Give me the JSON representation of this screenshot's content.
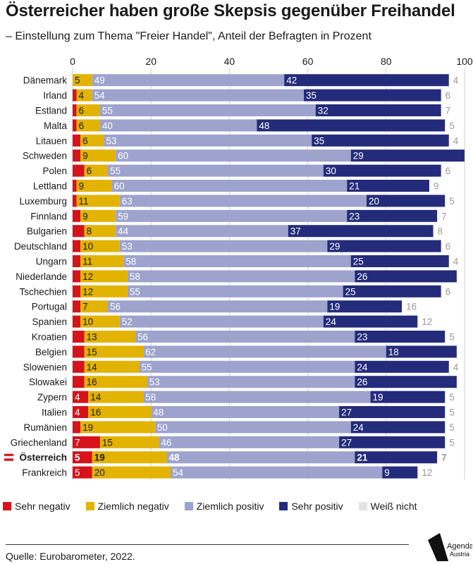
{
  "title": "Österreicher haben große Skepsis gegenüber Freihandel",
  "subtitle": "– Einstellung zum Thema \"Freier Handel\", Anteil der Befragten in Prozent",
  "source": "Quelle: Eurobarometer, 2022.",
  "logo": {
    "line1": "Agenda",
    "line2": "Austria"
  },
  "colors": {
    "sehr_negativ": "#d6121a",
    "ziemlich_negativ": "#e2b300",
    "ziemlich_positiv": "#9da3cc",
    "sehr_positiv": "#232b7a",
    "weiss_nicht": "#e3e3e3"
  },
  "highlight_flag": "austria-flag-icon",
  "chart_data": {
    "type": "bar",
    "orientation": "horizontal",
    "stacked": true,
    "xlim": [
      0,
      100
    ],
    "xticks": [
      "0",
      "20",
      "40",
      "60",
      "80",
      "100"
    ],
    "grid": true,
    "legend_position": "bottom",
    "highlight": "Österreich",
    "categories": [
      "Dänemark",
      "Irland",
      "Estland",
      "Malta",
      "Litauen",
      "Schweden",
      "Polen",
      "Lettland",
      "Luxemburg",
      "Finnland",
      "Bulgarien",
      "Deutschland",
      "Ungarn",
      "Niederlande",
      "Tschechien",
      "Portugal",
      "Spanien",
      "Kroatien",
      "Belgien",
      "Slowenien",
      "Slowakei",
      "Zypern",
      "Italien",
      "Rumänien",
      "Griechenland",
      "Österreich",
      "Frankreich"
    ],
    "series": [
      {
        "name": "Sehr negativ",
        "values": [
          0,
          1,
          1,
          1,
          2,
          2,
          3,
          1,
          1,
          2,
          3,
          2,
          2,
          2,
          2,
          2,
          2,
          3,
          3,
          3,
          3,
          4,
          4,
          2,
          7,
          5,
          5
        ],
        "labels": [
          "",
          "",
          "",
          "",
          "",
          "",
          "",
          "",
          "",
          "",
          "",
          "",
          "",
          "",
          "",
          "",
          "",
          "",
          "",
          "",
          "",
          "4",
          "4",
          "",
          "7",
          "5",
          "5"
        ]
      },
      {
        "name": "Ziemlich negativ",
        "values": [
          5,
          4,
          6,
          6,
          6,
          9,
          6,
          9,
          11,
          9,
          8,
          10,
          11,
          12,
          12,
          7,
          10,
          13,
          15,
          14,
          16,
          14,
          16,
          19,
          15,
          19,
          20
        ],
        "labels": [
          "5",
          "4",
          "6",
          "6",
          "6",
          "9",
          "6",
          "9",
          "11",
          "9",
          "8",
          "10",
          "11",
          "12",
          "12",
          "7",
          "10",
          "13",
          "15",
          "14",
          "16",
          "14",
          "16",
          "19",
          "15",
          "19",
          "20"
        ]
      },
      {
        "name": "Ziemlich positiv",
        "values": [
          49,
          54,
          55,
          40,
          53,
          60,
          55,
          60,
          63,
          59,
          44,
          53,
          58,
          58,
          55,
          56,
          52,
          56,
          62,
          55,
          53,
          58,
          48,
          50,
          46,
          48,
          54
        ],
        "labels": [
          "49",
          "54",
          "55",
          "40",
          "53",
          "60",
          "55",
          "60",
          "63",
          "59",
          "44",
          "53",
          "58",
          "58",
          "55",
          "56",
          "52",
          "56",
          "62",
          "55",
          "53",
          "58",
          "48",
          "50",
          "46",
          "48",
          "54"
        ]
      },
      {
        "name": "Sehr positiv",
        "values": [
          42,
          35,
          32,
          48,
          35,
          29,
          30,
          21,
          20,
          23,
          37,
          29,
          25,
          26,
          25,
          19,
          24,
          23,
          18,
          24,
          26,
          19,
          27,
          24,
          27,
          21,
          9
        ],
        "labels": [
          "42",
          "35",
          "32",
          "48",
          "35",
          "29",
          "30",
          "21",
          "20",
          "23",
          "37",
          "29",
          "25",
          "26",
          "25",
          "19",
          "24",
          "23",
          "18",
          "24",
          "26",
          "19",
          "27",
          "24",
          "27",
          "21",
          "9"
        ]
      },
      {
        "name": "Weiß nicht",
        "values": [
          4,
          6,
          7,
          5,
          4,
          0,
          6,
          9,
          5,
          7,
          8,
          6,
          4,
          0,
          6,
          16,
          12,
          5,
          0,
          4,
          0,
          5,
          5,
          5,
          5,
          7,
          12
        ],
        "labels": [
          "4",
          "6",
          "7",
          "5",
          "4",
          "",
          "6",
          "9",
          "5",
          "7",
          "8",
          "6",
          "4",
          "",
          "6",
          "16",
          "12",
          "5",
          "",
          "4",
          "",
          "5",
          "5",
          "5",
          "5",
          "7",
          "12"
        ]
      }
    ]
  }
}
